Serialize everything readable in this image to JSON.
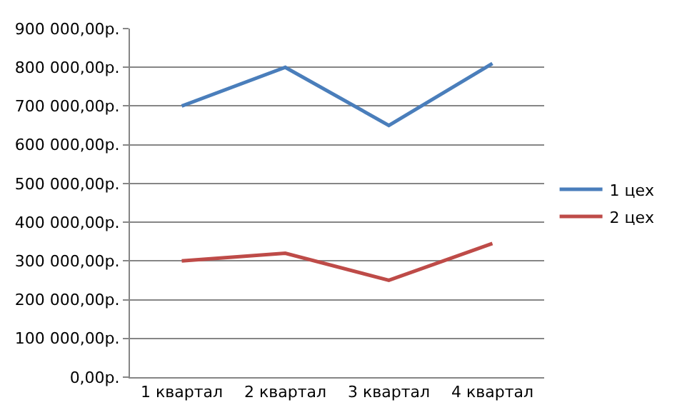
{
  "chart_data": {
    "type": "line",
    "categories": [
      "1 квартал",
      "2 квартал",
      "3 квартал",
      "4 квартал"
    ],
    "series": [
      {
        "name": "1 цех",
        "color": "#4a7ebb",
        "values": [
          700000,
          800000,
          650000,
          810000
        ]
      },
      {
        "name": "2 цех",
        "color": "#be4b48",
        "values": [
          300000,
          320000,
          250000,
          345000
        ]
      }
    ],
    "ylim": [
      0,
      900000
    ],
    "yticks": [
      {
        "value": 0,
        "label": "0,00р."
      },
      {
        "value": 100000,
        "label": "100 000,00р."
      },
      {
        "value": 200000,
        "label": "200 000,00р."
      },
      {
        "value": 300000,
        "label": "300 000,00р."
      },
      {
        "value": 400000,
        "label": "400 000,00р."
      },
      {
        "value": 500000,
        "label": "500 000,00р."
      },
      {
        "value": 600000,
        "label": "600 000,00р."
      },
      {
        "value": 700000,
        "label": "700 000,00р."
      },
      {
        "value": 800000,
        "label": "800 000,00р."
      },
      {
        "value": 900000,
        "label": "900 000,00р."
      }
    ],
    "grid": "y",
    "legend": "right",
    "marker": "none",
    "line_style": "solid"
  }
}
